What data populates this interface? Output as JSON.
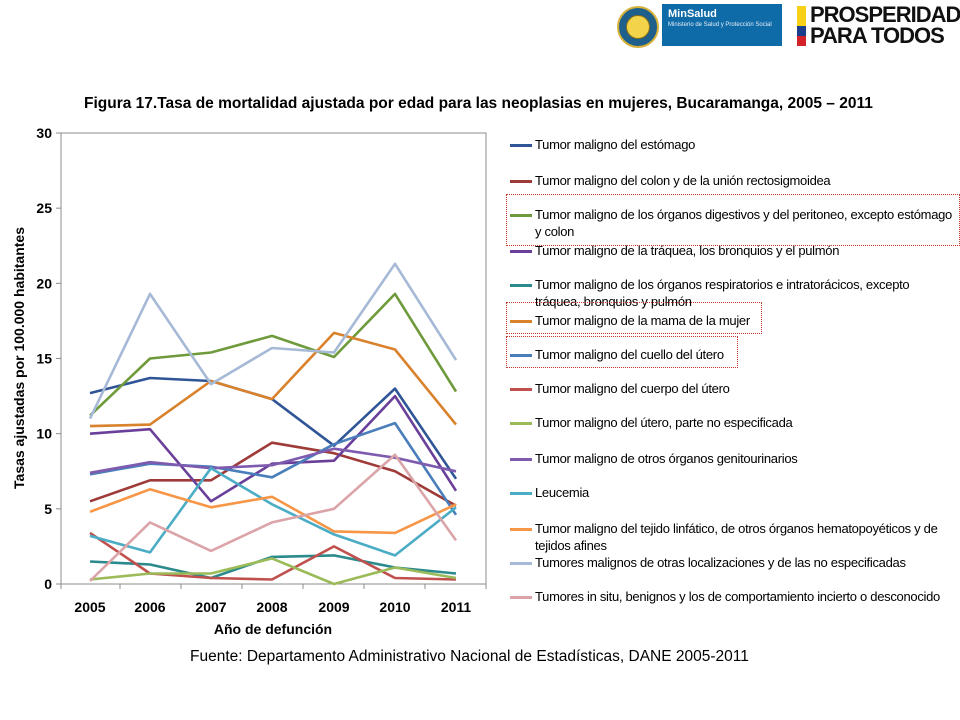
{
  "header": {
    "ministry_brand": "MinSalud",
    "ministry_sub": "Ministerio de Salud y Protección Social",
    "campaign_line1": "PROSPERIDAD",
    "campaign_line2": "PARA TODOS"
  },
  "figure": {
    "title": "Figura 17.Tasa de mortalidad ajustada por edad para las neoplasias en mujeres, Bucaramanga, 2005 – 2011",
    "source": "Fuente: Departamento Administrativo Nacional de Estadísticas, DANE 2005-2011"
  },
  "chart_data": {
    "type": "line",
    "title": "Figura 17.Tasa de mortalidad ajustada por edad para las neoplasias en mujeres, Bucaramanga, 2005 – 2011",
    "xlabel": "Año de defunción",
    "ylabel": "Tasas ajustadas por 100.000 habitantes",
    "x": [
      "2005",
      "2006",
      "2007",
      "2008",
      "2009",
      "2010",
      "2011"
    ],
    "ylim": [
      0,
      30
    ],
    "yticks": [
      0,
      5,
      10,
      15,
      20,
      25,
      30
    ],
    "grid": false,
    "legend_position": "right",
    "series": [
      {
        "name": "Tumor maligno del estómago",
        "color": "#2f5597",
        "values": [
          12.7,
          13.7,
          13.5,
          12.3,
          9.2,
          13.0,
          7.0
        ]
      },
      {
        "name": "Tumor maligno del colon y de la unión rectosigmoidea",
        "color": "#9e3a38",
        "values": [
          5.5,
          6.9,
          6.9,
          9.4,
          8.7,
          7.5,
          5.2
        ]
      },
      {
        "name": "Tumor maligno de los órganos digestivos y del peritoneo, excepto estómago y colon",
        "color": "#6f9a3b",
        "values": [
          11.2,
          15.0,
          15.4,
          16.5,
          15.1,
          19.3,
          12.8
        ]
      },
      {
        "name": "Tumor maligno de la tráquea, los bronquios y el pulmón",
        "color": "#6a3f9a",
        "values": [
          10.0,
          10.3,
          5.5,
          8.0,
          8.2,
          12.5,
          6.2
        ]
      },
      {
        "name": "Tumor maligno de los órganos respiratorios e intratorácicos, excepto tráquea, bronquios y pulmón",
        "color": "#2a8a8c",
        "values": [
          1.5,
          1.3,
          0.4,
          1.8,
          1.9,
          1.1,
          0.7
        ]
      },
      {
        "name": "Tumor maligno de la mama de la mujer",
        "color": "#d9822b",
        "values": [
          10.5,
          10.6,
          13.5,
          12.3,
          16.7,
          15.6,
          10.6
        ]
      },
      {
        "name": "Tumor maligno del cuello del útero",
        "color": "#4a7ebb",
        "values": [
          7.3,
          8.0,
          7.8,
          7.1,
          9.3,
          10.7,
          4.6
        ]
      },
      {
        "name": "Tumor maligno del cuerpo del útero",
        "color": "#c0504d",
        "values": [
          3.4,
          0.7,
          0.4,
          0.3,
          2.5,
          0.4,
          0.3
        ]
      },
      {
        "name": "Tumor maligno del útero, parte no especificada",
        "color": "#9bbb59",
        "values": [
          0.3,
          0.7,
          0.7,
          1.7,
          0.0,
          1.1,
          0.4
        ]
      },
      {
        "name": "Tumor maligno de otros órganos genitourinarios",
        "color": "#7f5bb0",
        "values": [
          7.4,
          8.1,
          7.7,
          7.9,
          9.0,
          8.4,
          7.5
        ]
      },
      {
        "name": "Leucemia",
        "color": "#4bacc6",
        "values": [
          3.2,
          2.1,
          7.7,
          5.3,
          3.3,
          1.9,
          5.1
        ]
      },
      {
        "name": "Tumor maligno del tejido linfático, de otros órganos hematopoyéticos y de tejidos afines",
        "color": "#f79646",
        "values": [
          4.8,
          6.3,
          5.1,
          5.8,
          3.5,
          3.4,
          5.3
        ]
      },
      {
        "name": "Tumores malignos de otras localizaciones y de las no especificadas",
        "color": "#a6b9d6",
        "values": [
          11.0,
          19.3,
          13.3,
          15.7,
          15.4,
          21.3,
          14.9
        ]
      },
      {
        "name": "Tumores in situ, benignos y los de comportamiento incierto o desconocido",
        "color": "#dba4a8",
        "values": [
          0.2,
          4.1,
          2.2,
          4.1,
          5.0,
          8.6,
          2.9
        ]
      }
    ]
  }
}
